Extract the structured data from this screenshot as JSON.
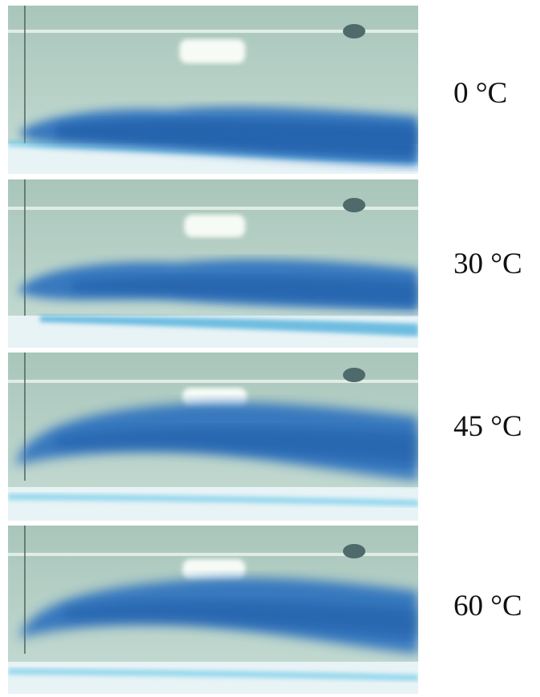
{
  "figure": {
    "panels": [
      {
        "temperature_label": "0 °C"
      },
      {
        "temperature_label": "30 °C"
      },
      {
        "temperature_label": "45 °C"
      },
      {
        "temperature_label": "60 °C"
      }
    ]
  },
  "colors": {
    "tank_water": "#b6cfc6",
    "tank_water_dark": "#9db9ae",
    "dye_plume": "#2a6fbe",
    "dye_plume_dark": "#1f5aa6",
    "floor_light": "#e8f3f6",
    "floor_cyan": "#5ec6e6"
  }
}
